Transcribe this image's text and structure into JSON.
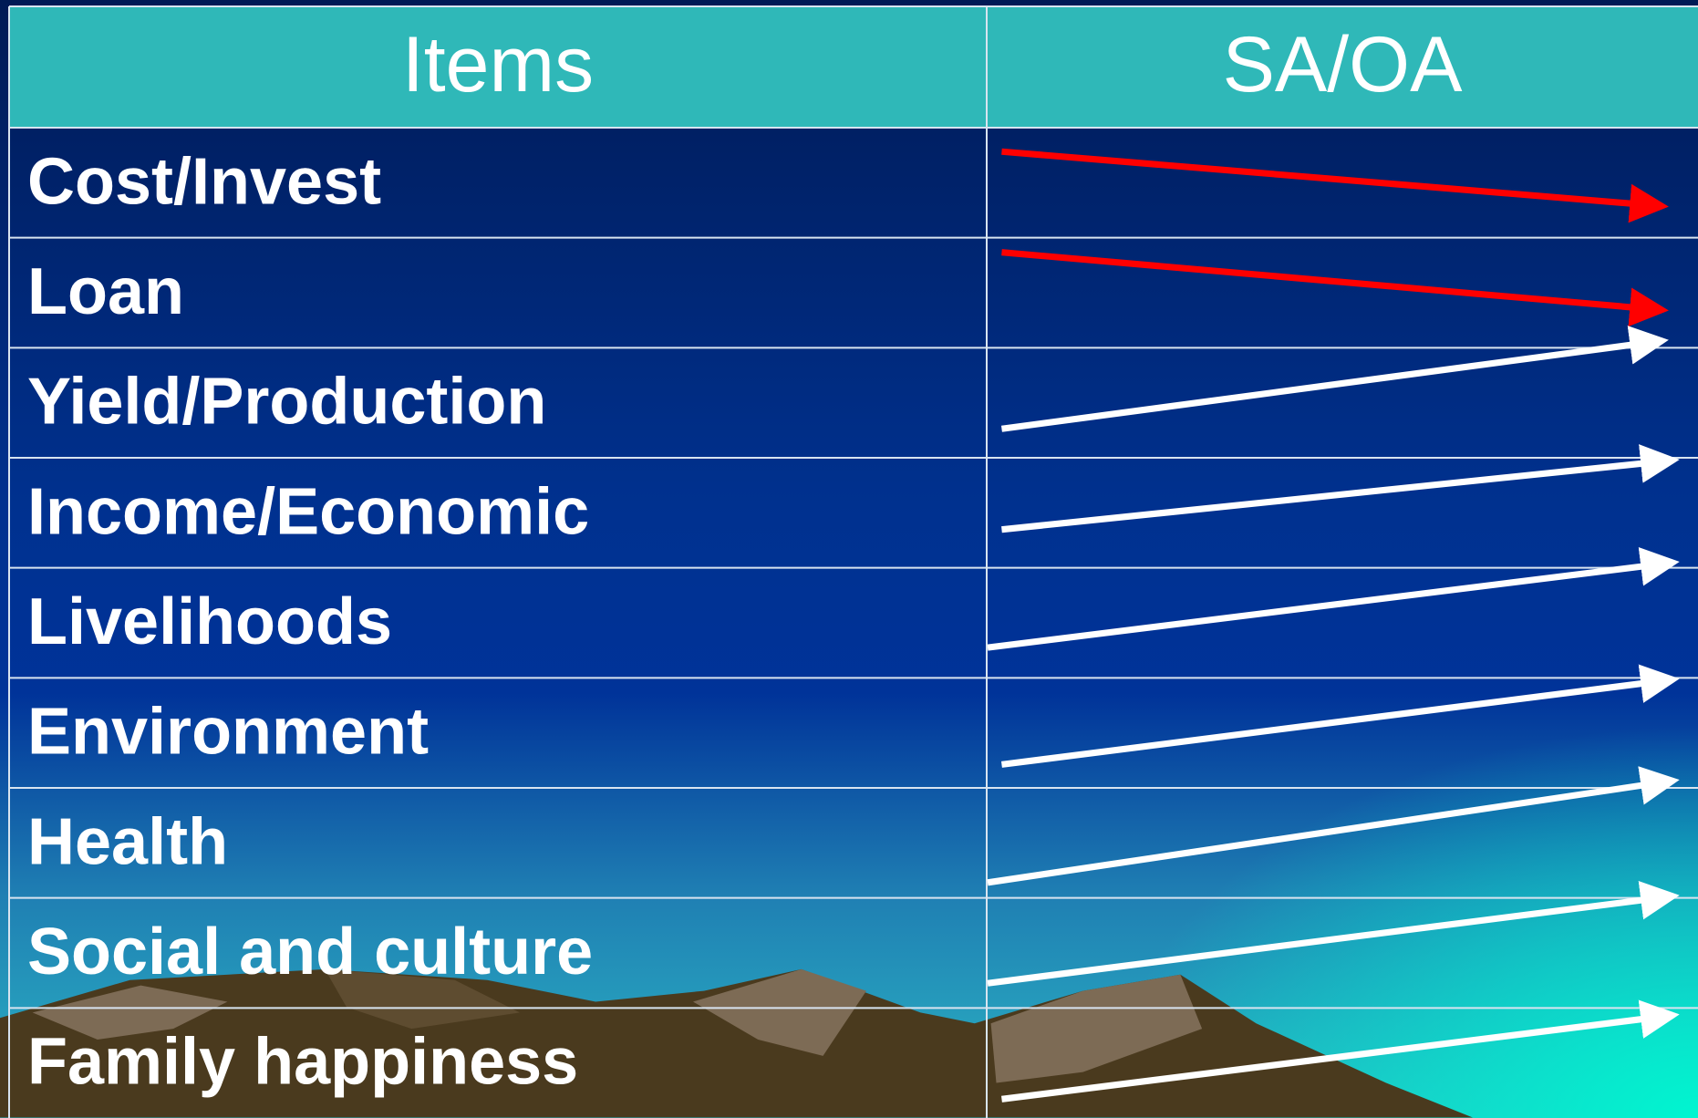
{
  "table": {
    "header": [
      "Items",
      "SA/OA"
    ],
    "rows": [
      [
        "Cost/Invest"
      ],
      [
        "Loan"
      ],
      [
        "Yield/Production"
      ],
      [
        "Income/Economic"
      ],
      [
        "Livelihoods"
      ],
      [
        "Environment"
      ],
      [
        "Health"
      ],
      [
        "Social and culture"
      ],
      [
        "Family happiness"
      ]
    ]
  }
}
